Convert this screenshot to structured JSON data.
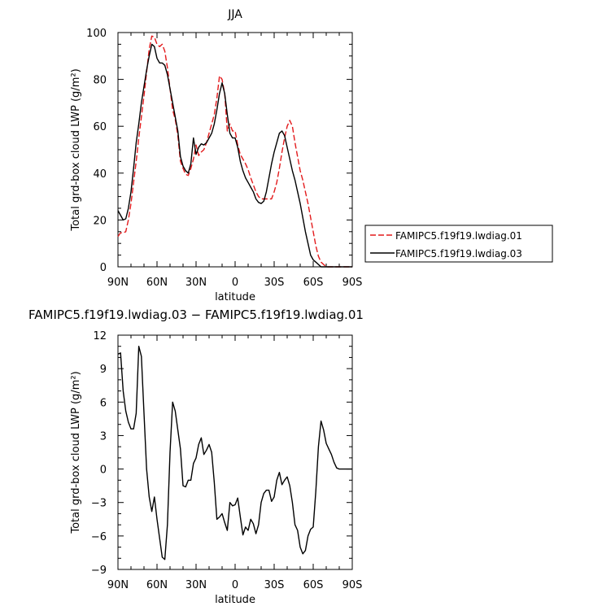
{
  "chart_data": [
    {
      "type": "line",
      "title": "JJA",
      "xlabel": "latitude",
      "ylabel": "Total grd-box cloud LWP (g/m²)",
      "xlim": [
        90,
        -90
      ],
      "ylim": [
        0,
        100
      ],
      "xticks": [
        90,
        60,
        30,
        0,
        -30,
        -60,
        -90
      ],
      "xtick_labels": [
        "90N",
        "60N",
        "30N",
        "0",
        "30S",
        "60S",
        "90S"
      ],
      "yticks": [
        0,
        20,
        40,
        60,
        80,
        100
      ],
      "ytick_labels": [
        "0",
        "20",
        "40",
        "60",
        "80",
        "100"
      ],
      "grid": false,
      "legend_position": "outside-right",
      "series": [
        {
          "name": "FAMIPC5.f19f19.lwdiag.01",
          "color": "#e31a1c",
          "dash": "dashed",
          "x": [
            90,
            88,
            86,
            84,
            82,
            80,
            78,
            76,
            74,
            72,
            70,
            68,
            66,
            64,
            62,
            60,
            58,
            56,
            54,
            52,
            50,
            48,
            46,
            44,
            42,
            40,
            38,
            36,
            34,
            32,
            30,
            28,
            26,
            24,
            22,
            20,
            18,
            16,
            14,
            12,
            10,
            8,
            6,
            4,
            2,
            0,
            -2,
            -4,
            -6,
            -8,
            -10,
            -12,
            -14,
            -16,
            -18,
            -20,
            -22,
            -24,
            -26,
            -28,
            -30,
            -32,
            -34,
            -36,
            -38,
            -40,
            -42,
            -44,
            -46,
            -48,
            -50,
            -52,
            -54,
            -56,
            -58,
            -60,
            -62,
            -64,
            -66,
            -68,
            -70,
            -72,
            -74,
            -76,
            -78,
            -80,
            -82,
            -84,
            -86,
            -88,
            -90
          ],
          "y": [
            13,
            14.5,
            14.5,
            15,
            20,
            27,
            36,
            45,
            55,
            64,
            73,
            83,
            93,
            98.5,
            98,
            95,
            94,
            95,
            92,
            85,
            76,
            67,
            63,
            56,
            45,
            42,
            39.5,
            39,
            42,
            46,
            52,
            47.5,
            49,
            50,
            53,
            57,
            61,
            65,
            72,
            81.5,
            80,
            74,
            58,
            61,
            58,
            58,
            52,
            48,
            46,
            44,
            41.5,
            38,
            35,
            32,
            30,
            29,
            29,
            29,
            29,
            29,
            32,
            36,
            42,
            49,
            55,
            60,
            62.5,
            60,
            53,
            47,
            41,
            37,
            32,
            27,
            21,
            15,
            9,
            4.5,
            2,
            1,
            0,
            0,
            0,
            0,
            0,
            0,
            0,
            0,
            0,
            0,
            0
          ]
        },
        {
          "name": "FAMIPC5.f19f19.lwdiag.03",
          "color": "#000000",
          "dash": "solid",
          "x": [
            90,
            88,
            86,
            84,
            82,
            80,
            78,
            76,
            74,
            72,
            70,
            68,
            66,
            64,
            62,
            60,
            58,
            56,
            54,
            52,
            50,
            48,
            46,
            44,
            42,
            40,
            38,
            36,
            34,
            32,
            30,
            28,
            26,
            24,
            22,
            20,
            18,
            16,
            14,
            12,
            10,
            8,
            6,
            4,
            2,
            0,
            -2,
            -4,
            -6,
            -8,
            -10,
            -12,
            -14,
            -16,
            -18,
            -20,
            -22,
            -24,
            -26,
            -28,
            -30,
            -32,
            -34,
            -36,
            -38,
            -40,
            -42,
            -44,
            -46,
            -48,
            -50,
            -52,
            -54,
            -56,
            -58,
            -60,
            -62,
            -64,
            -66,
            -68,
            -70,
            -72,
            -74,
            -76,
            -78,
            -80,
            -82,
            -84,
            -86,
            -88,
            -90
          ],
          "y": [
            24,
            22,
            20,
            20.5,
            25,
            32,
            42,
            53,
            61,
            70,
            77,
            84,
            90,
            95,
            94,
            89,
            87,
            87,
            86,
            82,
            76,
            70,
            64,
            58,
            47,
            43,
            41,
            40,
            44,
            55,
            48,
            51,
            52.5,
            52,
            53,
            55,
            57,
            61,
            67,
            74,
            78.5,
            74,
            65,
            57,
            55,
            55,
            51,
            45,
            41,
            38,
            36,
            34,
            32,
            29,
            27.5,
            27,
            28,
            32,
            38,
            44,
            49,
            53,
            57,
            58,
            56,
            51,
            46,
            41,
            37,
            32,
            27,
            21,
            15,
            10,
            5,
            3,
            2,
            1,
            0,
            0,
            0,
            0,
            0,
            0,
            0,
            0,
            0,
            0,
            0,
            0,
            0
          ]
        }
      ]
    },
    {
      "type": "line",
      "title": "FAMIPC5.f19f19.lwdiag.03 − FAMIPC5.f19f19.lwdiag.01",
      "xlabel": "latitude",
      "ylabel": "Total grd-box cloud LWP (g/m²)",
      "xlim": [
        90,
        -90
      ],
      "ylim": [
        -9,
        12
      ],
      "xticks": [
        90,
        60,
        30,
        0,
        -30,
        -60,
        -90
      ],
      "xtick_labels": [
        "90N",
        "60N",
        "30N",
        "0",
        "30S",
        "60S",
        "90S"
      ],
      "yticks": [
        -9,
        -6,
        -3,
        0,
        3,
        6,
        9,
        12
      ],
      "ytick_labels": [
        "−9",
        "−6",
        "−3",
        "0",
        "3",
        "6",
        "9",
        "12"
      ],
      "grid": false,
      "series": [
        {
          "color": "#000000",
          "dash": "solid",
          "x": [
            90,
            88,
            86,
            84,
            82,
            80,
            78,
            76,
            74,
            72,
            70,
            68,
            66,
            64,
            62,
            60,
            58,
            56,
            54,
            52,
            50,
            48,
            46,
            44,
            42,
            40,
            38,
            36,
            34,
            32,
            30,
            28,
            26,
            24,
            22,
            20,
            18,
            16,
            14,
            12,
            10,
            8,
            6,
            4,
            2,
            0,
            -2,
            -4,
            -6,
            -8,
            -10,
            -12,
            -14,
            -16,
            -18,
            -20,
            -22,
            -24,
            -26,
            -28,
            -30,
            -32,
            -34,
            -36,
            -38,
            -40,
            -42,
            -44,
            -46,
            -48,
            -50,
            -52,
            -54,
            -56,
            -58,
            -60,
            -62,
            -64,
            -66,
            -68,
            -70,
            -72,
            -74,
            -76,
            -78,
            -80,
            -82,
            -84,
            -86,
            -88,
            -90
          ],
          "y": [
            10.3,
            10.4,
            7.0,
            5.2,
            4.2,
            3.6,
            3.6,
            5.0,
            11.0,
            10.1,
            5.0,
            0,
            -2.5,
            -3.8,
            -2.5,
            -4.5,
            -6.2,
            -7.9,
            -8.1,
            -5.0,
            1.5,
            6.0,
            5.2,
            3.5,
            1.8,
            -1.5,
            -1.6,
            -1.0,
            -1.0,
            0.5,
            1.0,
            2.2,
            2.8,
            1.3,
            1.7,
            2.2,
            1.5,
            -1.2,
            -4.5,
            -4.3,
            -4.0,
            -4.8,
            -5.5,
            -3.0,
            -3.3,
            -3.2,
            -2.6,
            -4.3,
            -5.9,
            -5.2,
            -5.5,
            -4.5,
            -4.9,
            -5.8,
            -5.0,
            -3.0,
            -2.2,
            -1.9,
            -1.9,
            -2.9,
            -2.5,
            -1.0,
            -0.3,
            -1.4,
            -1.0,
            -0.7,
            -1.5,
            -3.0,
            -5.0,
            -5.5,
            -7.0,
            -7.6,
            -7.3,
            -6.0,
            -5.4,
            -5.2,
            -2.0,
            2.0,
            4.3,
            3.5,
            2.3,
            1.8,
            1.3,
            0.6,
            0.1,
            0,
            0,
            0,
            0,
            0,
            0
          ]
        }
      ]
    }
  ]
}
